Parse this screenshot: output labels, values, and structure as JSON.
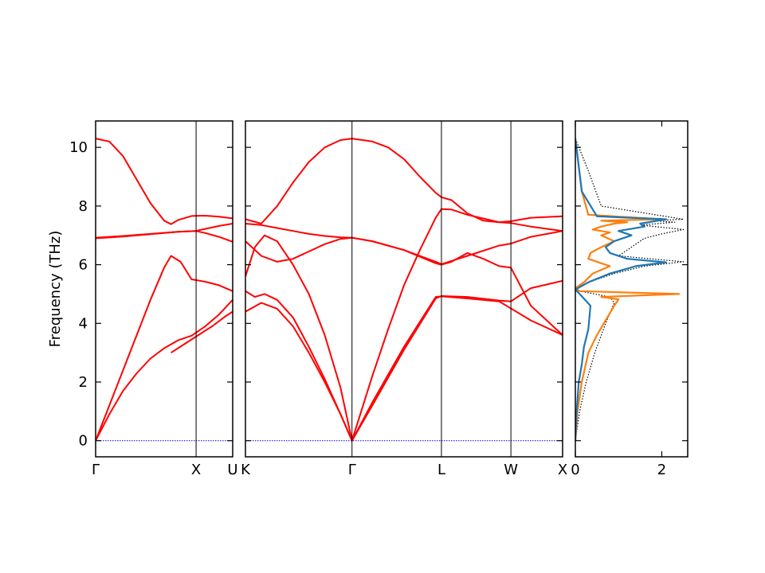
{
  "chart_data": {
    "type": "line",
    "ylabel": "Frequency (THz)",
    "ylim": [
      -0.55,
      10.9
    ],
    "yticks": [
      0,
      2,
      4,
      6,
      8,
      10
    ],
    "zero_line_color": "#0000cc",
    "band_color": "#ff0000",
    "panels": [
      {
        "id": "gamma-x-u",
        "xrange": [
          0,
          1.0
        ],
        "xtick_positions": [
          0,
          0.733,
          1.0
        ],
        "xtick_labels": [
          "Γ",
          "X",
          "U"
        ],
        "bands": [
          {
            "x": [
              0,
              0.1,
              0.2,
              0.3,
              0.4,
              0.5,
              0.6,
              0.7,
              0.8,
              0.9,
              1.0
            ],
            "y": [
              0,
              0.9,
              1.7,
              2.3,
              2.8,
              3.15,
              3.42,
              3.58,
              3.9,
              4.3,
              4.8
            ]
          },
          {
            "x": [
              0,
              0.1,
              0.2,
              0.3,
              0.4,
              0.5,
              0.55,
              0.62,
              0.7,
              0.8,
              0.9,
              1.0
            ],
            "y": [
              0,
              1.2,
              2.4,
              3.6,
              4.8,
              5.9,
              6.3,
              6.1,
              5.5,
              5.42,
              5.3,
              5.1
            ]
          },
          {
            "x": [
              0,
              0.2,
              0.4,
              0.6,
              0.73,
              0.8,
              0.9,
              1.0
            ],
            "y": [
              6.9,
              6.96,
              7.04,
              7.12,
              7.15,
              7.08,
              6.95,
              6.78
            ]
          },
          {
            "x": [
              0,
              0.2,
              0.4,
              0.6,
              0.73,
              0.8,
              0.9,
              1.0
            ],
            "y": [
              6.92,
              6.98,
              7.05,
              7.12,
              7.15,
              7.22,
              7.32,
              7.4
            ]
          },
          {
            "x": [
              0,
              0.1,
              0.2,
              0.3,
              0.4,
              0.5,
              0.55,
              0.6,
              0.7,
              0.8,
              0.9,
              1.0
            ],
            "y": [
              10.3,
              10.2,
              9.7,
              8.9,
              8.1,
              7.5,
              7.38,
              7.52,
              7.66,
              7.67,
              7.64,
              7.58
            ]
          },
          {
            "x": [
              0.55,
              0.65,
              0.75,
              0.85,
              0.95,
              1.0
            ],
            "y": [
              3.0,
              3.3,
              3.6,
              3.9,
              4.25,
              4.4
            ]
          }
        ]
      },
      {
        "id": "k-gamma-l-w-x",
        "xrange": [
          0,
          1.0
        ],
        "xtick_positions": [
          0,
          0.336,
          0.618,
          0.837,
          1.0
        ],
        "xtick_labels": [
          "K",
          "Γ",
          "L",
          "W",
          "X"
        ],
        "bands": [
          {
            "x": [
              0,
              0.05,
              0.1,
              0.15,
              0.2,
              0.25,
              0.3,
              0.336,
              0.4,
              0.5,
              0.6,
              0.618,
              0.7,
              0.8,
              0.9,
              1.0
            ],
            "y": [
              4.4,
              4.7,
              4.5,
              3.9,
              3.0,
              2.0,
              0.9,
              0,
              1.3,
              3.2,
              4.9,
              4.92,
              4.85,
              4.75,
              4.1,
              3.6
            ]
          },
          {
            "x": [
              0,
              0.03,
              0.06,
              0.1,
              0.15,
              0.2,
              0.25,
              0.3,
              0.336,
              0.4,
              0.5,
              0.6,
              0.618,
              0.7,
              0.8,
              0.837,
              0.9,
              1.0
            ],
            "y": [
              5.1,
              4.9,
              5.0,
              4.8,
              4.2,
              3.2,
              2.1,
              0.9,
              0,
              1.2,
              3.1,
              4.85,
              4.93,
              4.9,
              4.78,
              4.75,
              5.2,
              5.45
            ]
          },
          {
            "x": [
              0,
              0.03,
              0.06,
              0.1,
              0.15,
              0.2,
              0.25,
              0.3,
              0.336,
              0.4,
              0.45,
              0.5,
              0.55,
              0.6,
              0.618,
              0.65,
              0.7,
              0.8,
              0.837,
              0.9,
              1.0
            ],
            "y": [
              5.6,
              6.6,
              7.0,
              6.8,
              6.0,
              5.0,
              3.6,
              1.8,
              0,
              2.2,
              3.8,
              5.3,
              6.5,
              7.6,
              7.9,
              7.88,
              7.7,
              7.45,
              7.42,
              7.3,
              7.15
            ]
          },
          {
            "x": [
              0,
              0.05,
              0.1,
              0.15,
              0.2,
              0.25,
              0.3,
              0.336,
              0.4,
              0.5,
              0.6,
              0.618,
              0.7,
              0.8,
              0.837,
              0.9,
              1.0
            ],
            "y": [
              6.8,
              6.3,
              6.1,
              6.2,
              6.45,
              6.7,
              6.88,
              6.92,
              6.8,
              6.5,
              6.1,
              6.02,
              6.3,
              6.65,
              6.72,
              6.95,
              7.15
            ]
          },
          {
            "x": [
              0,
              0.05,
              0.1,
              0.15,
              0.2,
              0.25,
              0.3,
              0.336,
              0.4,
              0.5,
              0.6,
              0.618,
              0.65,
              0.7,
              0.75,
              0.8,
              0.837,
              0.9,
              1.0
            ],
            "y": [
              7.4,
              7.35,
              7.25,
              7.15,
              7.05,
              6.98,
              6.93,
              6.92,
              6.8,
              6.5,
              6.05,
              6.0,
              6.1,
              6.4,
              6.2,
              5.95,
              5.9,
              4.6,
              3.6
            ]
          },
          {
            "x": [
              0,
              0.05,
              0.1,
              0.15,
              0.2,
              0.25,
              0.3,
              0.336,
              0.4,
              0.45,
              0.5,
              0.55,
              0.6,
              0.618,
              0.65,
              0.7,
              0.75,
              0.8,
              0.837,
              0.9,
              1.0
            ],
            "y": [
              7.55,
              7.4,
              8.0,
              8.8,
              9.5,
              10.0,
              10.25,
              10.3,
              10.2,
              10.0,
              9.6,
              9.0,
              8.45,
              8.3,
              8.2,
              7.75,
              7.5,
              7.45,
              7.48,
              7.6,
              7.65
            ]
          }
        ]
      },
      {
        "id": "dos",
        "xrange": [
          0,
          2.6
        ],
        "xtick_positions": [
          0,
          2
        ],
        "xtick_labels": [
          "0",
          "2"
        ],
        "series": [
          {
            "style": "dotted",
            "color": "#000000",
            "x": [
              0,
              0.1,
              0.25,
              0.45,
              0.7,
              0.9,
              0.8,
              0.1,
              0.0,
              0.3,
              0.9,
              1.6,
              2.5,
              1.0,
              1.3,
              1.6,
              2.0,
              2.5,
              1.5,
              2.3,
              1.8,
              2.5,
              0.6,
              0.3,
              0.0
            ],
            "y": [
              0,
              1.0,
              2.0,
              3.0,
              4.0,
              4.7,
              4.9,
              5.1,
              5.2,
              5.4,
              5.7,
              5.95,
              6.1,
              6.3,
              6.6,
              6.9,
              7.05,
              7.2,
              7.35,
              7.45,
              7.5,
              7.55,
              8.0,
              9.2,
              10.3
            ]
          },
          {
            "style": "solid",
            "color": "#ff7f0e",
            "x": [
              0,
              0.05,
              0.15,
              0.3,
              0.5,
              0.7,
              0.9,
              1.0,
              0.6,
              2.4,
              0.1,
              0.0,
              0.2,
              0.4,
              0.8,
              0.6,
              0.3,
              0.35,
              0.6,
              0.9,
              0.6,
              0.8,
              0.4,
              0.6,
              0.9,
              1.2,
              0.6,
              2.0,
              0.3,
              0.15,
              0.0
            ],
            "y": [
              0,
              1.0,
              2.0,
              3.0,
              3.6,
              4.1,
              4.6,
              4.82,
              4.9,
              5.0,
              5.1,
              5.2,
              5.4,
              5.7,
              5.95,
              6.05,
              6.2,
              6.4,
              6.6,
              6.8,
              7.0,
              7.1,
              7.2,
              7.3,
              7.4,
              7.45,
              7.5,
              7.55,
              7.7,
              8.5,
              10.3
            ]
          },
          {
            "style": "solid",
            "color": "#1f77b4",
            "x": [
              0,
              0.03,
              0.08,
              0.15,
              0.2,
              0.3,
              0.35,
              0.1,
              0.0,
              0.3,
              0.8,
              1.4,
              2.1,
              1.2,
              0.8,
              0.7,
              0.9,
              1.3,
              1.0,
              1.6,
              1.5,
              2.1,
              0.5,
              0.15,
              0.0
            ],
            "y": [
              0,
              1.0,
              2.0,
              2.6,
              3.2,
              3.8,
              4.6,
              5.0,
              5.15,
              5.4,
              5.7,
              5.95,
              6.08,
              6.2,
              6.4,
              6.6,
              6.8,
              7.0,
              7.15,
              7.3,
              7.4,
              7.55,
              7.65,
              8.5,
              10.3
            ]
          }
        ]
      }
    ]
  }
}
